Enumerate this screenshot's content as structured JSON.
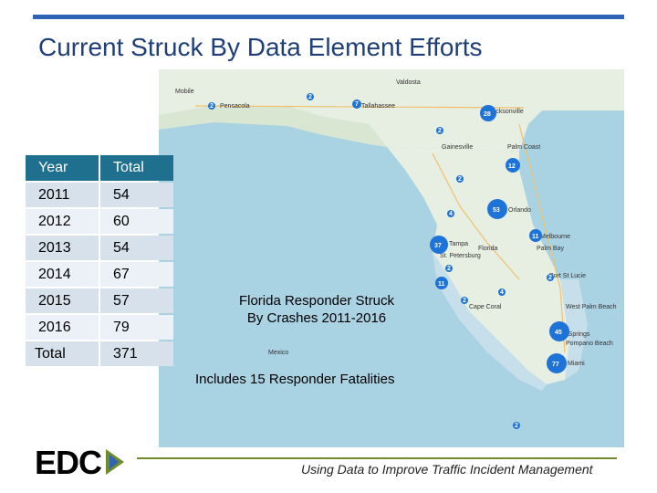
{
  "slide": {
    "title": "Current Struck By Data Element Efforts",
    "caption": "Florida Responder Struck By Crashes 2011-2016",
    "note": "Includes 15 Responder Fatalities",
    "footer": "Using Data to Improve Traffic Incident Management",
    "logo_text": "EDC"
  },
  "table": {
    "headers": [
      "Year",
      "Total"
    ],
    "rows": [
      [
        "2011",
        "54"
      ],
      [
        "2012",
        "60"
      ],
      [
        "2013",
        "54"
      ],
      [
        "2014",
        "67"
      ],
      [
        "2015",
        "57"
      ],
      [
        "2016",
        "79"
      ],
      [
        "Total",
        "371"
      ]
    ]
  },
  "map": {
    "places": [
      "Mobile",
      "Valdosta",
      "Pensacola",
      "Tallahassee",
      "Jacksonville",
      "Gainesville",
      "Palm Coast",
      "Orlando",
      "Tampa",
      "St. Petersburg",
      "Florida",
      "Melbourne",
      "Palm Bay",
      "Port St Lucie",
      "Cape Coral",
      "West Palm Beach",
      "Coral Springs",
      "Pompano Beach",
      "Miami",
      "Mexico"
    ],
    "markers": [
      "2",
      "2",
      "7",
      "28",
      "2",
      "12",
      "2",
      "53",
      "4",
      "37",
      "11",
      "2",
      "2",
      "4",
      "11",
      "2",
      "45",
      "77",
      "2"
    ]
  },
  "colors": {
    "title": "#1f3f78",
    "header_fill": "#1f6f8f",
    "row_odd": "#d7e1ec",
    "row_even": "#ecf1f7",
    "marker": "#1e73d8",
    "water": "#a9d2e3",
    "land": "#e7eee2"
  }
}
